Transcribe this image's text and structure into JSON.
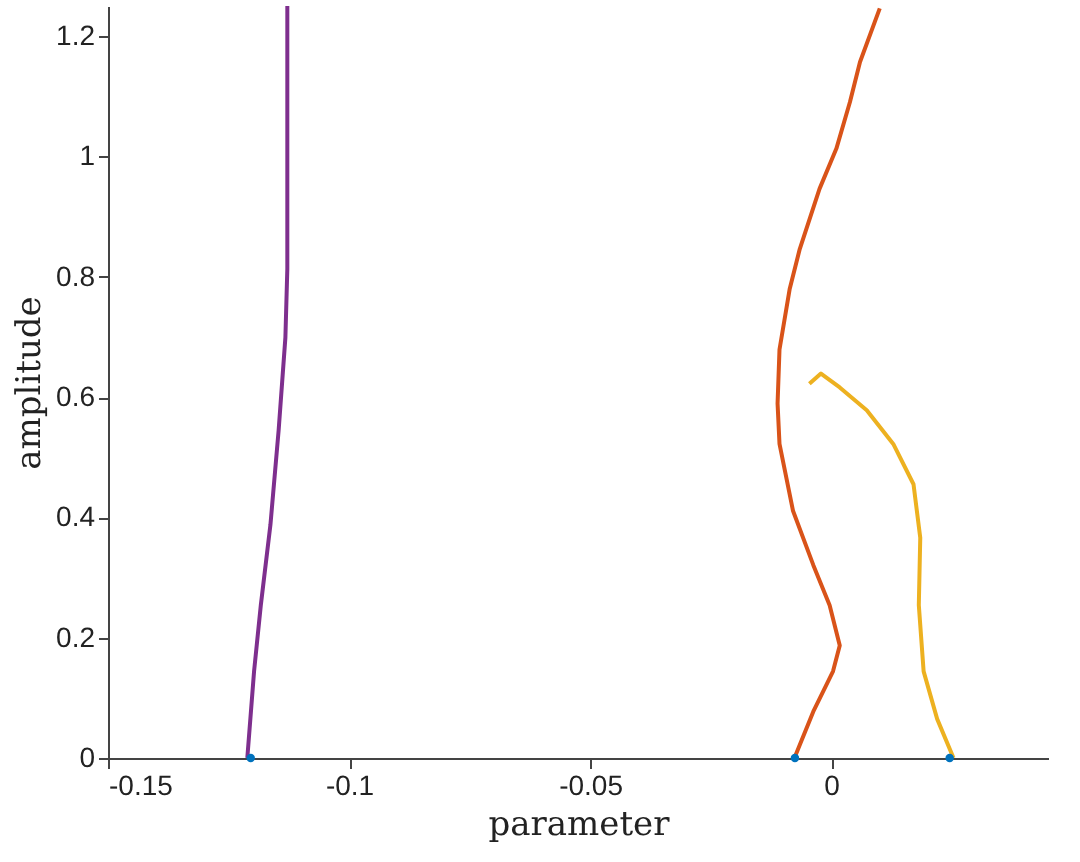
{
  "chart_data": {
    "type": "line",
    "xlabel": "parameter",
    "ylabel": "amplitude",
    "xlim": [
      -0.15,
      0.045
    ],
    "ylim": [
      0,
      1.25
    ],
    "xticks": [
      -0.15,
      -0.1,
      -0.05,
      0
    ],
    "yticks": [
      0,
      0.2,
      0.4,
      0.6,
      0.8,
      1,
      1.2
    ],
    "grid": false,
    "series": [
      {
        "color": "#7e2f8e",
        "x": [
          -0.1211,
          -0.1197,
          -0.1183,
          -0.1163,
          -0.1146,
          -0.1132,
          -0.1128,
          -0.1128
        ],
        "values": [
          0,
          0.144,
          0.254,
          0.388,
          0.545,
          0.699,
          0.813,
          1.25
        ]
      },
      {
        "color": "#d95319",
        "x": [
          -0.0076,
          -0.0037,
          0.0004,
          0.0018,
          -0.0003,
          -0.0037,
          -0.0079,
          -0.0107,
          -0.0111,
          -0.0107,
          -0.0086,
          -0.0065,
          -0.0024,
          0.0011,
          0.0039,
          0.006,
          0.0101
        ],
        "values": [
          0,
          0.077,
          0.144,
          0.187,
          0.254,
          0.321,
          0.411,
          0.522,
          0.589,
          0.679,
          0.779,
          0.846,
          0.946,
          1.013,
          1.09,
          1.157,
          1.246
        ]
      },
      {
        "color": "#edb120",
        "x": [
          0.0254,
          0.022,
          0.0192,
          0.0182,
          0.0185,
          0.0171,
          0.0129,
          0.0074,
          0.0018,
          -0.0021,
          -0.0045
        ],
        "values": [
          0,
          0.065,
          0.144,
          0.254,
          0.366,
          0.455,
          0.522,
          0.578,
          0.616,
          0.639,
          0.622
        ]
      },
      {
        "type": "scatter",
        "marker": "circle",
        "color": "#0072bd",
        "x": [
          -0.1204,
          -0.0075,
          0.0246
        ],
        "values": [
          0,
          0,
          0
        ]
      }
    ]
  }
}
